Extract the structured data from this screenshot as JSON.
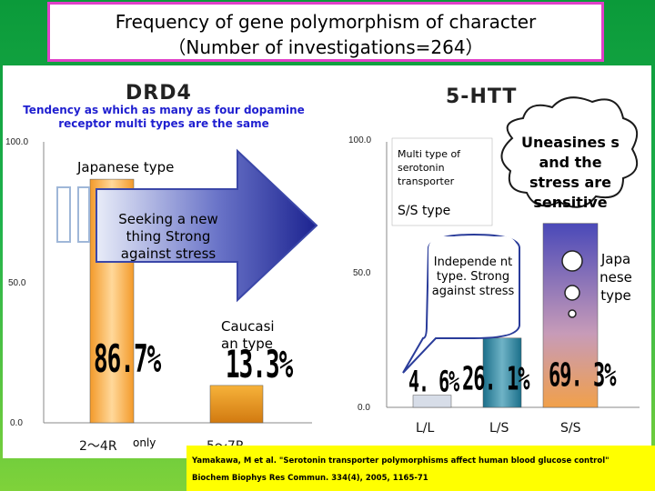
{
  "slide_title": {
    "line1": "Frequency of gene polymorphism of character",
    "line2": "（Number of investigations=264）"
  },
  "chart_data": [
    {
      "type": "bar",
      "title": "DRD4",
      "categories": [
        "2～4R",
        "5～7R"
      ],
      "values": [
        86.7,
        13.3
      ],
      "value_labels": [
        "86.7%",
        "13.3%"
      ],
      "yticks": [
        "100.0",
        "50.0",
        "0.0"
      ],
      "ylim": [
        0,
        100
      ],
      "note": "Tendency as which as many as four dopamine receptor multi types are the same",
      "arrow_text": "Seeking a new thing Strong against stress",
      "group_labels": [
        "Japanese type",
        "Caucasi an type"
      ],
      "footnote": "only"
    },
    {
      "type": "bar",
      "title": "5-HTT",
      "categories": [
        "L/L",
        "L/S",
        "S/S"
      ],
      "values": [
        4.6,
        26.1,
        69.3
      ],
      "value_labels": [
        "4. 6%",
        "26. 1%",
        "69. 3%"
      ],
      "yticks": [
        "100.0",
        "50.0",
        "0.0"
      ],
      "ylim": [
        0,
        100
      ],
      "legend_box": [
        "Multi type of serotonin transporter",
        "S/S type"
      ],
      "callout_left": "Independe nt type. Strong against stress",
      "cloud": "Uneasines s and the stress are sensitive",
      "side_label": "Japa nese type"
    }
  ],
  "citation": {
    "line1": "Yamakawa, M et al. \"Serotonin transporter polymorphisms affect human blood glucose control\"",
    "line2": "Biochem Biophys Res Commun. 334(4), 2005, 1165-71"
  }
}
